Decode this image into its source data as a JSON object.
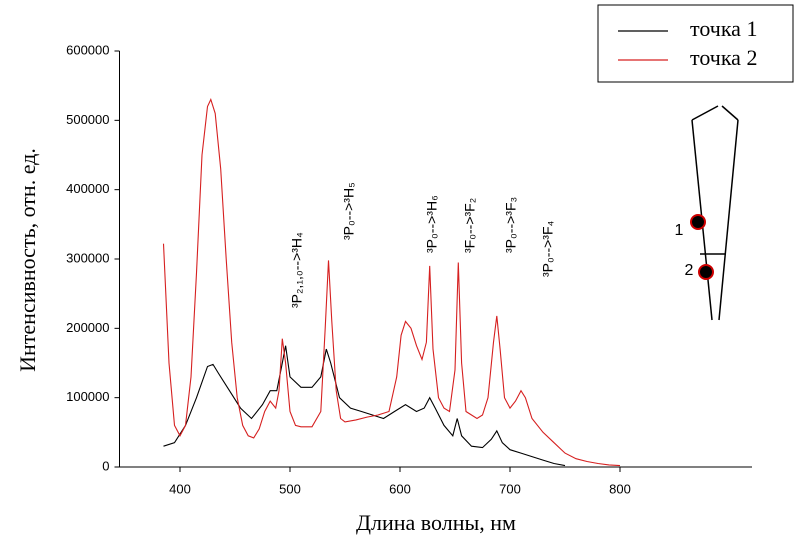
{
  "chart_data": {
    "type": "line",
    "x_label": "Длина волны, нм",
    "y_label": "Интенсивность, отн. ед.",
    "xlim": [
      345,
      920
    ],
    "xticks": [
      400,
      500,
      600,
      700,
      800
    ],
    "ylim": [
      0,
      600000
    ],
    "yticks": [
      0,
      100000,
      200000,
      300000,
      400000,
      500000,
      600000
    ],
    "legend": "top-right",
    "series": [
      {
        "name": "точка 1",
        "color": "#000000",
        "x": [
          385,
          395,
          405,
          415,
          425,
          430,
          435,
          445,
          455,
          465,
          475,
          482,
          488,
          493,
          496,
          500,
          510,
          520,
          528,
          533,
          537,
          545,
          555,
          565,
          575,
          585,
          595,
          605,
          615,
          622,
          627,
          632,
          640,
          648,
          652,
          656,
          665,
          675,
          683,
          688,
          693,
          700,
          710,
          720,
          730,
          740,
          750
        ],
        "values": [
          30000,
          35000,
          60000,
          100000,
          145000,
          148000,
          135000,
          110000,
          85000,
          70000,
          90000,
          110000,
          110000,
          150000,
          175000,
          130000,
          115000,
          115000,
          130000,
          170000,
          150000,
          100000,
          85000,
          80000,
          75000,
          70000,
          80000,
          90000,
          80000,
          85000,
          100000,
          85000,
          60000,
          45000,
          70000,
          45000,
          30000,
          28000,
          40000,
          52000,
          35000,
          25000,
          20000,
          15000,
          10000,
          5000,
          2000
        ]
      },
      {
        "name": "точка 2",
        "color": "#d62020",
        "x": [
          385,
          390,
          395,
          400,
          405,
          410,
          415,
          420,
          425,
          428,
          432,
          437,
          442,
          447,
          452,
          457,
          462,
          467,
          472,
          477,
          482,
          487,
          490,
          493,
          496,
          500,
          505,
          510,
          520,
          528,
          532,
          535,
          538,
          542,
          546,
          550,
          560,
          570,
          580,
          590,
          597,
          601,
          605,
          610,
          615,
          620,
          624,
          627,
          630,
          635,
          640,
          645,
          650,
          653,
          656,
          660,
          665,
          670,
          675,
          680,
          685,
          688,
          691,
          695,
          700,
          705,
          710,
          714,
          720,
          730,
          740,
          750,
          760,
          770,
          780,
          790,
          800
        ],
        "values": [
          322000,
          150000,
          60000,
          45000,
          60000,
          130000,
          280000,
          450000,
          520000,
          530000,
          510000,
          430000,
          300000,
          180000,
          100000,
          60000,
          45000,
          42000,
          55000,
          80000,
          95000,
          85000,
          110000,
          185000,
          150000,
          80000,
          60000,
          58000,
          58000,
          80000,
          200000,
          298000,
          210000,
          110000,
          70000,
          65000,
          68000,
          72000,
          75000,
          80000,
          130000,
          190000,
          210000,
          200000,
          175000,
          155000,
          180000,
          290000,
          170000,
          100000,
          85000,
          80000,
          140000,
          295000,
          150000,
          80000,
          75000,
          70000,
          75000,
          100000,
          180000,
          218000,
          170000,
          100000,
          85000,
          95000,
          110000,
          100000,
          70000,
          50000,
          35000,
          20000,
          12000,
          8000,
          5000,
          3000,
          2000
        ]
      }
    ],
    "annotations": [
      "³P₂,₁,₀-->³H₄",
      "³P₀-->³H₅",
      "³P₀-->³H₆",
      "³F₀-->³F₂",
      "³P₀-->³F₃",
      "³P₀-->³F₄"
    ]
  },
  "inset": {
    "labels": [
      "1",
      "2"
    ]
  }
}
